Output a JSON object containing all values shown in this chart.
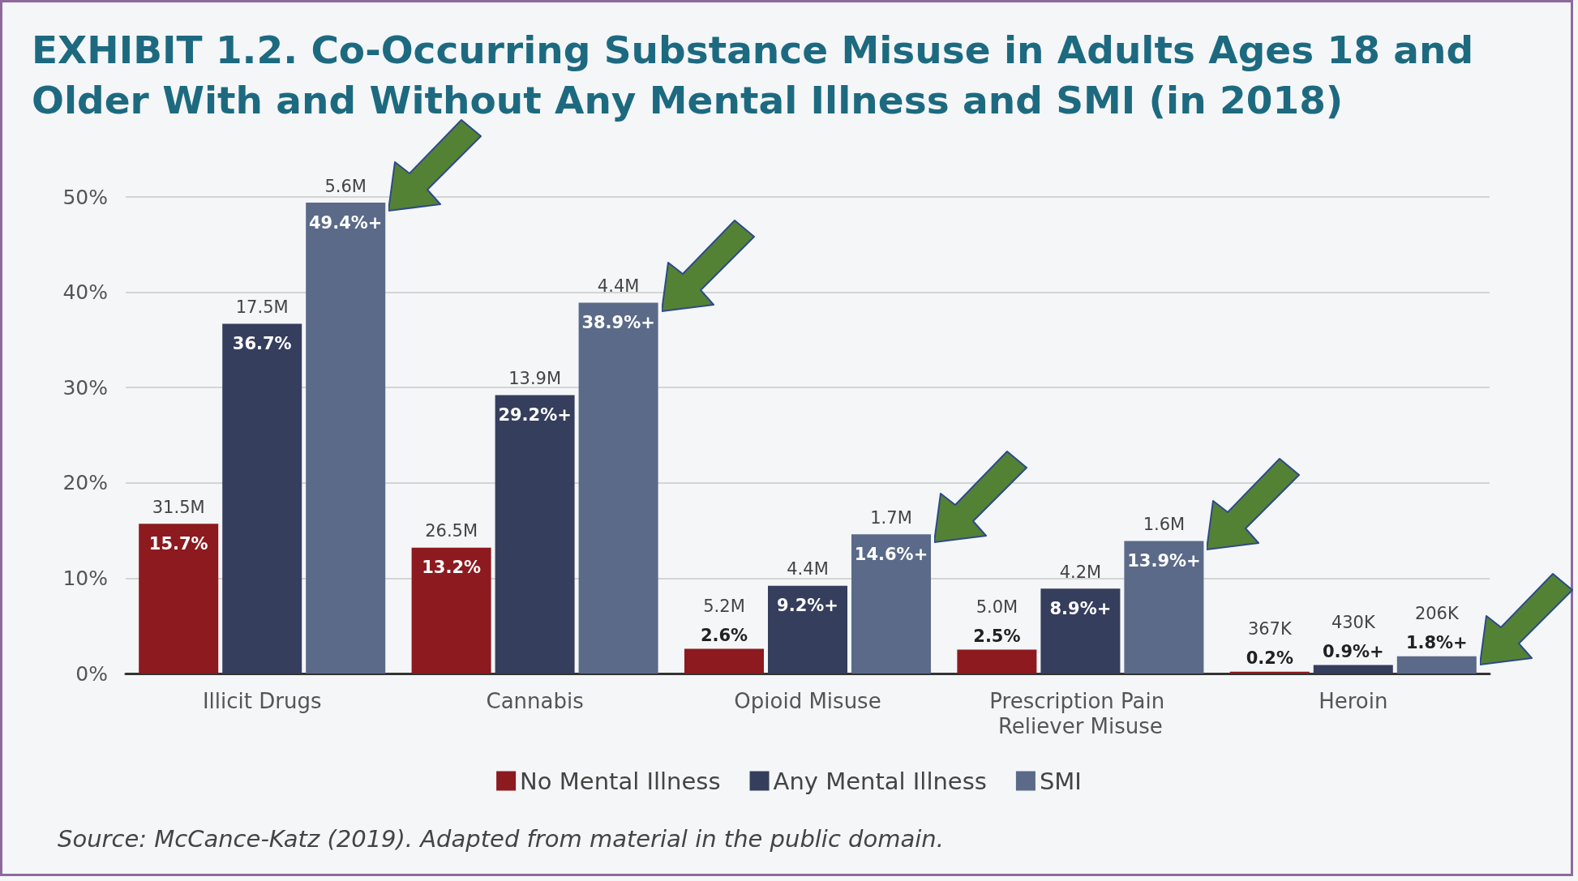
{
  "chart_data": {
    "type": "bar",
    "title": "EXHIBIT 1.2. Co-Occurring Substance Misuse in Adults Ages 18 and Older With and Without Any Mental Illness and SMI (in 2018)",
    "categories": [
      "Illicit Drugs",
      "Cannabis",
      "Opioid Misuse",
      "Prescription Pain Reliever Misuse",
      "Heroin"
    ],
    "series": [
      {
        "name": "No Mental Illness",
        "color": "#8c1a1f",
        "values": [
          15.7,
          13.2,
          2.6,
          2.5,
          0.2
        ],
        "value_labels": [
          "15.7%",
          "13.2%",
          "2.6%",
          "2.5%",
          "0.2%"
        ]
      },
      {
        "name": "Any Mental Illness",
        "color": "#363e5e",
        "values": [
          36.7,
          29.2,
          9.2,
          8.9,
          0.9
        ],
        "value_labels": [
          "36.7%",
          "29.2%+",
          "9.2%+",
          "8.9%+",
          "0.9%+"
        ]
      },
      {
        "name": "SMI",
        "color": "#5a6a88",
        "values": [
          49.4,
          38.9,
          14.6,
          13.9,
          1.8
        ],
        "value_labels": [
          "49.4%+",
          "38.9%+",
          "14.6%+",
          "13.9%+",
          "1.8%+"
        ]
      }
    ],
    "ylim": [
      0,
      50
    ],
    "yticks": [
      {
        "value": 0,
        "label": "0%"
      },
      {
        "value": 10,
        "label": "10%"
      },
      {
        "value": 20,
        "label": "20%"
      },
      {
        "value": 30,
        "label": "30%"
      },
      {
        "value": 40,
        "label": "40%"
      },
      {
        "value": 50,
        "label": "50%"
      }
    ],
    "grid": "y",
    "legend": "bottom",
    "annotations": [
      "31.5M",
      "17.5M",
      "5.6M",
      "26.5M",
      "13.9M",
      "4.4M",
      "5.2M",
      "4.4M",
      "1.7M",
      "5.0M",
      "4.2M",
      "1.6M",
      "367K",
      "430K",
      "206K",
      "Source: McCance-Katz (2019). Adapted from material in the public domain."
    ]
  }
}
